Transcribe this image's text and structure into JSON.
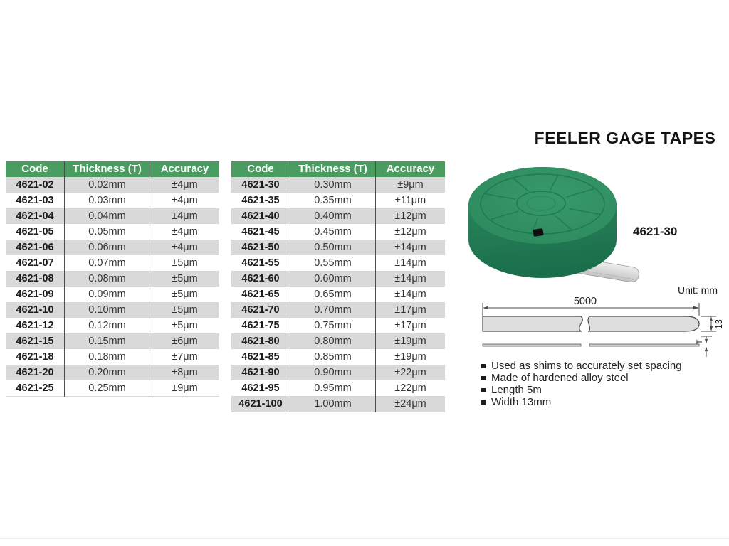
{
  "title": "FEELER GAGE TAPES",
  "product_label": "4621-30",
  "unit_label": "Unit: mm",
  "table_headers": [
    "Code",
    "Thickness (T)",
    "Accuracy"
  ],
  "table1_rows": [
    [
      "4621-02",
      "0.02mm",
      "±4μm"
    ],
    [
      "4621-03",
      "0.03mm",
      "±4μm"
    ],
    [
      "4621-04",
      "0.04mm",
      "±4μm"
    ],
    [
      "4621-05",
      "0.05mm",
      "±4μm"
    ],
    [
      "4621-06",
      "0.06mm",
      "±4μm"
    ],
    [
      "4621-07",
      "0.07mm",
      "±5μm"
    ],
    [
      "4621-08",
      "0.08mm",
      "±5μm"
    ],
    [
      "4621-09",
      "0.09mm",
      "±5μm"
    ],
    [
      "4621-10",
      "0.10mm",
      "±5μm"
    ],
    [
      "4621-12",
      "0.12mm",
      "±5μm"
    ],
    [
      "4621-15",
      "0.15mm",
      "±6μm"
    ],
    [
      "4621-18",
      "0.18mm",
      "±7μm"
    ],
    [
      "4621-20",
      "0.20mm",
      "±8μm"
    ],
    [
      "4621-25",
      "0.25mm",
      "±9μm"
    ]
  ],
  "table2_rows": [
    [
      "4621-30",
      "0.30mm",
      "±9μm"
    ],
    [
      "4621-35",
      "0.35mm",
      "±11μm"
    ],
    [
      "4621-40",
      "0.40mm",
      "±12μm"
    ],
    [
      "4621-45",
      "0.45mm",
      "±12μm"
    ],
    [
      "4621-50",
      "0.50mm",
      "±14μm"
    ],
    [
      "4621-55",
      "0.55mm",
      "±14μm"
    ],
    [
      "4621-60",
      "0.60mm",
      "±14μm"
    ],
    [
      "4621-65",
      "0.65mm",
      "±14μm"
    ],
    [
      "4621-70",
      "0.70mm",
      "±17μm"
    ],
    [
      "4621-75",
      "0.75mm",
      "±17μm"
    ],
    [
      "4621-80",
      "0.80mm",
      "±19μm"
    ],
    [
      "4621-85",
      "0.85mm",
      "±19μm"
    ],
    [
      "4621-90",
      "0.90mm",
      "±22μm"
    ],
    [
      "4621-95",
      "0.95mm",
      "±22μm"
    ],
    [
      "4621-100",
      "1.00mm",
      "±24μm"
    ]
  ],
  "diagram": {
    "length_dim": "5000",
    "width_dim": "13",
    "thickness_dim": "T"
  },
  "features": [
    "Used as shims to accurately set spacing",
    "Made of hardened alloy steel",
    "Length 5m",
    "Width 13mm"
  ],
  "colors": {
    "header_green": "#4B9C60",
    "row_gray": "#D9D9D9",
    "disc_green": "#2E8C5F",
    "disc_green_dark": "#1D7350",
    "tape_gray": "#D8D8D8",
    "drawing_stroke": "#4A4A4A"
  }
}
